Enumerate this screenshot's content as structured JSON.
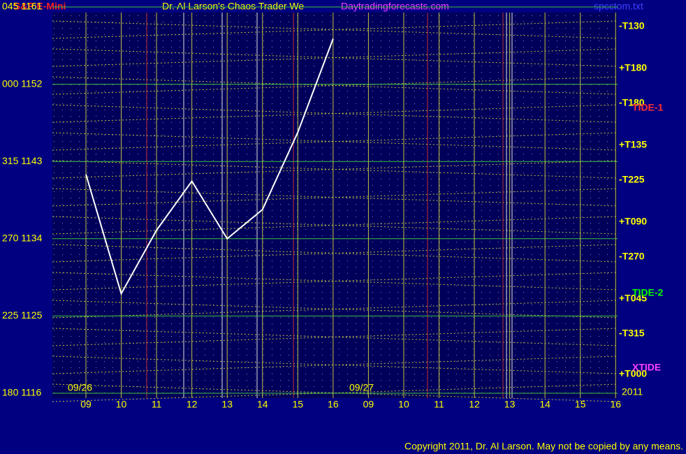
{
  "chart_data": {
    "type": "line",
    "instrument": "S&P E-Mini",
    "title": "Dr. Al Larson's Chaos Trader We",
    "site": "Daytradingforecasts.com",
    "file": "spcctom.txt",
    "copyright": "Copyright 2011, Dr. Al Larson. May not be copied by any means.",
    "dates": [
      "09/26",
      "09/27"
    ],
    "year": "2011",
    "categories": [
      "09",
      "10",
      "11",
      "12",
      "13",
      "14",
      "15",
      "16",
      "09",
      "10",
      "11",
      "12",
      "13",
      "14",
      "15",
      "16"
    ],
    "series": [
      {
        "color": "#ffffff",
        "values": [
          1141.5,
          1127.6,
          1135,
          1140.7,
          1134,
          1137.4,
          1146.4,
          1157.3,
          null,
          null,
          null,
          null,
          null,
          null,
          null,
          null
        ]
      }
    ],
    "ylim": [
      1116,
      1161
    ],
    "yticks": [
      {
        "value": 1116,
        "label": "180 1116"
      },
      {
        "value": 1125,
        "label": "225 1125"
      },
      {
        "value": 1134,
        "label": "270 1134"
      },
      {
        "value": 1143,
        "label": "315 1143"
      },
      {
        "value": 1152,
        "label": "000 1152"
      },
      {
        "value": 1161,
        "label": "045 1161"
      }
    ],
    "grid": true,
    "right_labels": [
      {
        "text": "-T130",
        "color": "#ffff00"
      },
      {
        "text": "+T180",
        "color": "#ffff00"
      },
      {
        "text": "-T180",
        "color": "#ffff00"
      },
      {
        "text": "+T135",
        "color": "#ffff00"
      },
      {
        "text": "-T225",
        "color": "#ffff00"
      },
      {
        "text": "+T090",
        "color": "#ffff00"
      },
      {
        "text": "-T270",
        "color": "#ffff00"
      },
      {
        "text": "+T045",
        "color": "#ffff00"
      },
      {
        "text": "-T315",
        "color": "#ffff00"
      },
      {
        "text": "+T000",
        "color": "#ffff00"
      },
      {
        "text": "TIDE-1",
        "color": "#ff3030"
      },
      {
        "text": "TIDE-2",
        "color": "#00ff00"
      },
      {
        "text": "XTIDE",
        "color": "#ff40ff"
      }
    ]
  }
}
